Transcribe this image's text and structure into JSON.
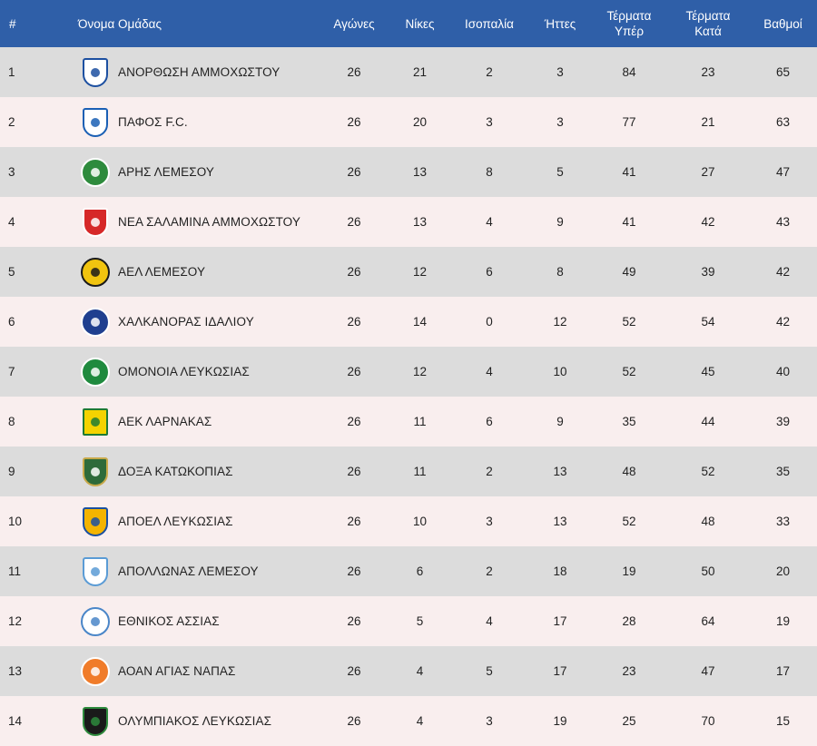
{
  "headers": {
    "pos": "#",
    "team": "Όνομα Ομάδας",
    "played": "Αγώνες",
    "wins": "Νίκες",
    "draws": "Ισοπαλία",
    "losses": "Ήττες",
    "gf_line1": "Τέρματα",
    "gf_line2": "Υπέρ",
    "ga_line1": "Τέρματα",
    "ga_line2": "Κατά",
    "points": "Βαθμοί"
  },
  "rows": [
    {
      "pos": "1",
      "team": "ΑΝΟΡΘΩΣΗ ΑΜΜΟΧΩΣΤΟΥ",
      "played": "26",
      "wins": "21",
      "draws": "2",
      "losses": "3",
      "gf": "84",
      "ga": "23",
      "points": "65",
      "logo": {
        "icon": "anorthosis-crest-icon",
        "shape": "shield",
        "bg": "#ffffff",
        "border": "#1c4fa0",
        "fg": "#1c4fa0"
      }
    },
    {
      "pos": "2",
      "team": "ΠΑΦΟΣ F.C.",
      "played": "26",
      "wins": "20",
      "draws": "3",
      "losses": "3",
      "gf": "77",
      "ga": "21",
      "points": "63",
      "logo": {
        "icon": "pafos-crest-icon",
        "shape": "shield",
        "bg": "#ffffff",
        "border": "#1a5fb4",
        "fg": "#1a5fb4"
      }
    },
    {
      "pos": "3",
      "team": "ΑΡΗΣ ΛΕΜΕΣΟΥ",
      "played": "26",
      "wins": "13",
      "draws": "8",
      "losses": "5",
      "gf": "41",
      "ga": "27",
      "points": "47",
      "logo": {
        "icon": "aris-crest-icon",
        "shape": "circle",
        "bg": "#2e8b3d",
        "border": "#ffffff",
        "fg": "#ffffff"
      }
    },
    {
      "pos": "4",
      "team": "ΝΕΑ ΣΑΛΑΜΙΝΑ ΑΜΜΟΧΩΣΤΟΥ",
      "played": "26",
      "wins": "13",
      "draws": "4",
      "losses": "9",
      "gf": "41",
      "ga": "42",
      "points": "43",
      "logo": {
        "icon": "nea-salamina-crest-icon",
        "shape": "shield",
        "bg": "#d62828",
        "border": "#ffffff",
        "fg": "#ffffff"
      }
    },
    {
      "pos": "5",
      "team": "ΑΕΛ ΛΕΜΕΣΟΥ",
      "played": "26",
      "wins": "12",
      "draws": "6",
      "losses": "8",
      "gf": "49",
      "ga": "39",
      "points": "42",
      "logo": {
        "icon": "ael-crest-icon",
        "shape": "circle",
        "bg": "#f1c40f",
        "border": "#1a1a1a",
        "fg": "#1a1a1a"
      }
    },
    {
      "pos": "6",
      "team": "ΧΑΛΚΑΝΟΡΑΣ ΙΔΑΛΙΟΥ",
      "played": "26",
      "wins": "14",
      "draws": "0",
      "losses": "12",
      "gf": "52",
      "ga": "54",
      "points": "42",
      "logo": {
        "icon": "chalkanoras-crest-icon",
        "shape": "circle",
        "bg": "#1f3f8f",
        "border": "#ffffff",
        "fg": "#ffffff"
      }
    },
    {
      "pos": "7",
      "team": "ΟΜΟΝΟΙΑ ΛΕΥΚΩΣΙΑΣ",
      "played": "26",
      "wins": "12",
      "draws": "4",
      "losses": "10",
      "gf": "52",
      "ga": "45",
      "points": "40",
      "logo": {
        "icon": "omonoia-clover-icon",
        "shape": "circle",
        "bg": "#1f8a3e",
        "border": "#ffffff",
        "fg": "#ffffff"
      }
    },
    {
      "pos": "8",
      "team": "ΑΕΚ ΛΑΡΝΑΚΑΣ",
      "played": "26",
      "wins": "11",
      "draws": "6",
      "losses": "9",
      "gf": "35",
      "ga": "44",
      "points": "39",
      "logo": {
        "icon": "aek-larnaca-crest-icon",
        "shape": "square",
        "bg": "#f4d300",
        "border": "#1e7a33",
        "fg": "#1e7a33"
      }
    },
    {
      "pos": "9",
      "team": "ΔΟΞΑ ΚΑΤΩΚΟΠΙΑΣ",
      "played": "26",
      "wins": "11",
      "draws": "2",
      "losses": "13",
      "gf": "48",
      "ga": "52",
      "points": "35",
      "logo": {
        "icon": "doxa-eagle-crest-icon",
        "shape": "shield",
        "bg": "#2e6b3a",
        "border": "#c8a94a",
        "fg": "#ffffff"
      }
    },
    {
      "pos": "10",
      "team": "ΑΠΟΕΛ ΛΕΥΚΩΣΙΑΣ",
      "played": "26",
      "wins": "10",
      "draws": "3",
      "losses": "13",
      "gf": "52",
      "ga": "48",
      "points": "33",
      "logo": {
        "icon": "apoel-crest-icon",
        "shape": "shield",
        "bg": "#f4b400",
        "border": "#1a4fa0",
        "fg": "#1a4fa0"
      }
    },
    {
      "pos": "11",
      "team": "ΑΠΟΛΛΩΝΑΣ ΛΕΜΕΣΟΥ",
      "played": "26",
      "wins": "6",
      "draws": "2",
      "losses": "18",
      "gf": "19",
      "ga": "50",
      "points": "20",
      "logo": {
        "icon": "apollon-crest-icon",
        "shape": "shield",
        "bg": "#ffffff",
        "border": "#5a9bd5",
        "fg": "#5a9bd5"
      }
    },
    {
      "pos": "12",
      "team": "ΕΘΝΙΚΟΣ ΑΣΣΙΑΣ",
      "played": "26",
      "wins": "5",
      "draws": "4",
      "losses": "17",
      "gf": "28",
      "ga": "64",
      "points": "19",
      "logo": {
        "icon": "ethnikos-achnas-crest-icon",
        "shape": "circle",
        "bg": "#ffffff",
        "border": "#4a86c8",
        "fg": "#4a86c8"
      }
    },
    {
      "pos": "13",
      "team": "ΑΟΑΝ ΑΓΙΑΣ ΝΑΠΑΣ",
      "played": "26",
      "wins": "4",
      "draws": "5",
      "losses": "17",
      "gf": "23",
      "ga": "47",
      "points": "17",
      "logo": {
        "icon": "aoan-crest-icon",
        "shape": "circle",
        "bg": "#f07c2a",
        "border": "#ffffff",
        "fg": "#ffffff"
      }
    },
    {
      "pos": "14",
      "team": "ΟΛΥΜΠΙΑΚΟΣ ΛΕΥΚΩΣΙΑΣ",
      "played": "26",
      "wins": "4",
      "draws": "3",
      "losses": "19",
      "gf": "25",
      "ga": "70",
      "points": "15",
      "logo": {
        "icon": "olympiakos-nicosia-crest-icon",
        "shape": "shield",
        "bg": "#1a1a1a",
        "border": "#2e8b3d",
        "fg": "#2e8b3d"
      }
    }
  ]
}
